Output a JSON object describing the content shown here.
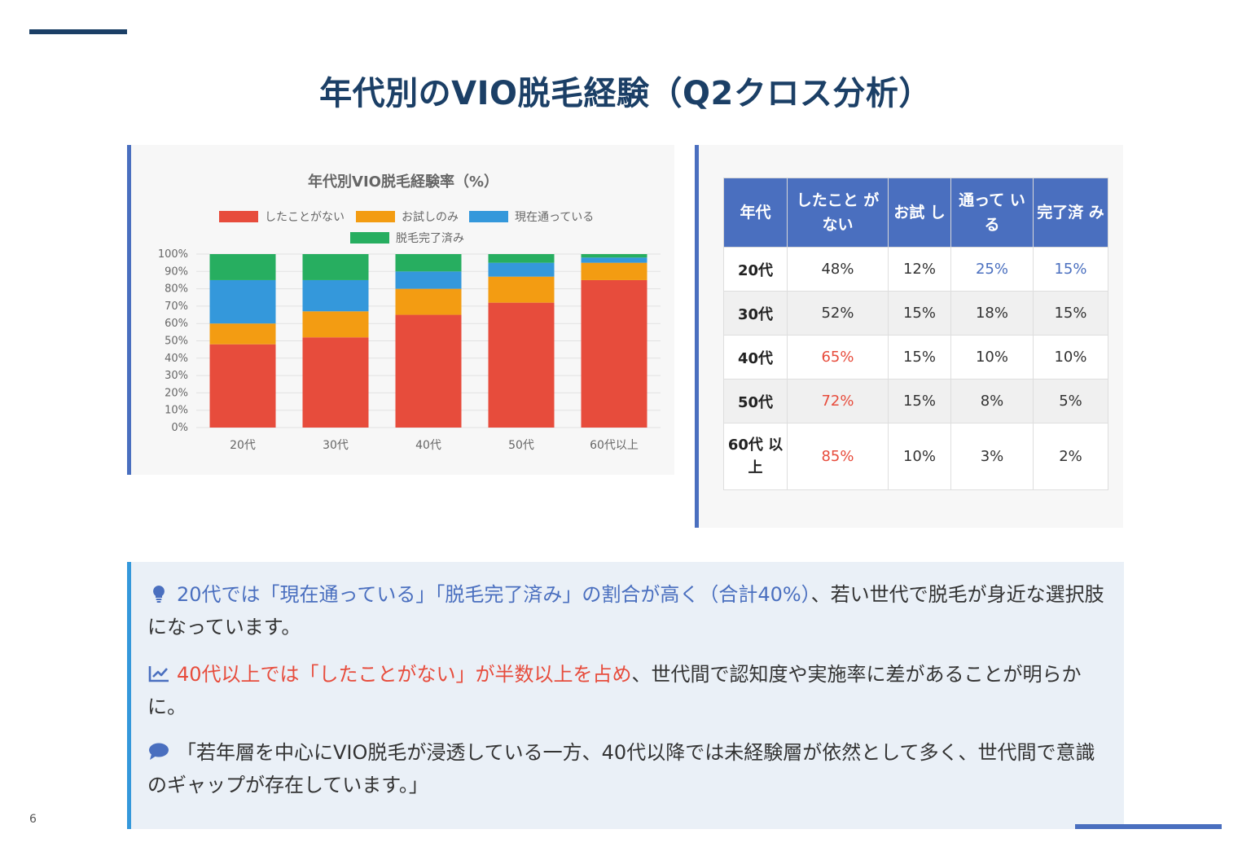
{
  "slide": {
    "title": "年代別のVIO脱毛経験（Q2クロス分析）",
    "page_number": "6"
  },
  "colors": {
    "never": "#e74c3c",
    "trial": "#f39c12",
    "current": "#3498db",
    "completed": "#27ae60",
    "accent": "#4a6fbf",
    "title": "#1b3f66"
  },
  "chart_data": {
    "type": "bar",
    "stacked": true,
    "title": "年代別VIO脱毛経験率（%）",
    "categories": [
      "20代",
      "30代",
      "40代",
      "50代",
      "60代以上"
    ],
    "series": [
      {
        "name": "したことがない",
        "values": [
          48,
          52,
          65,
          72,
          85
        ]
      },
      {
        "name": "お試しのみ",
        "values": [
          12,
          15,
          15,
          15,
          10
        ]
      },
      {
        "name": "現在通っている",
        "values": [
          25,
          18,
          10,
          8,
          3
        ]
      },
      {
        "name": "脱毛完了済み",
        "values": [
          15,
          15,
          10,
          5,
          2
        ]
      }
    ],
    "yticks": [
      "0%",
      "10%",
      "20%",
      "30%",
      "40%",
      "50%",
      "60%",
      "70%",
      "80%",
      "90%",
      "100%"
    ],
    "ylim": [
      0,
      100
    ],
    "xlabel": "",
    "ylabel": "",
    "legend_position": "top"
  },
  "table": {
    "headers": [
      "年代",
      "したこと がない",
      "お試 し",
      "通って いる",
      "完了済 み"
    ],
    "rows": [
      {
        "age": "20代",
        "never": "48%",
        "trial": "12%",
        "current": "25%",
        "completed": "15%"
      },
      {
        "age": "30代",
        "never": "52%",
        "trial": "15%",
        "current": "18%",
        "completed": "15%"
      },
      {
        "age": "40代",
        "never": "65%",
        "trial": "15%",
        "current": "10%",
        "completed": "10%"
      },
      {
        "age": "50代",
        "never": "72%",
        "trial": "15%",
        "current": "8%",
        "completed": "5%"
      },
      {
        "age": "60代 以上",
        "never": "85%",
        "trial": "10%",
        "current": "3%",
        "completed": "2%"
      }
    ]
  },
  "insights": [
    {
      "icon": "lightbulb-icon",
      "highlight": "20代では「現在通っている」「脱毛完了済み」の割合が高く（合計40%）",
      "text": "、若い世代で脱毛が身近な選択肢になっています。"
    },
    {
      "icon": "line-chart-icon",
      "highlight": "40代以上では「したことがない」が半数以上を占め",
      "text": "、世代間で認知度や実施率に差があることが明らかに。"
    },
    {
      "icon": "speech-bubble-icon",
      "text": "「若年層を中心にVIO脱毛が浸透している一方、40代以降では未経験層が依然として多く、世代間で意識のギャップが存在しています。」"
    }
  ]
}
